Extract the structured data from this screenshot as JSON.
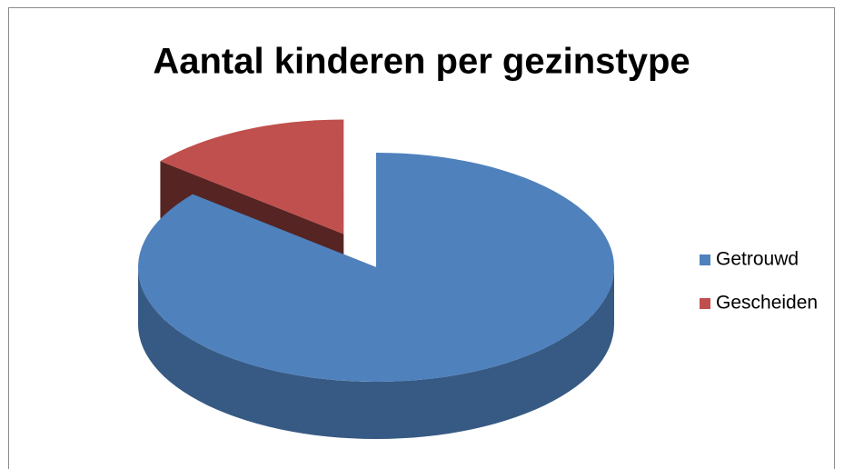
{
  "chart_data": {
    "type": "pie",
    "title": "Aantal kinderen per gezinstype",
    "categories": [
      "Getrouwd",
      "Gescheiden"
    ],
    "values": [
      86,
      14
    ],
    "colors": [
      "#4f81bd",
      "#c0504d"
    ],
    "exploded": [
      false,
      true
    ],
    "legend": "right"
  }
}
